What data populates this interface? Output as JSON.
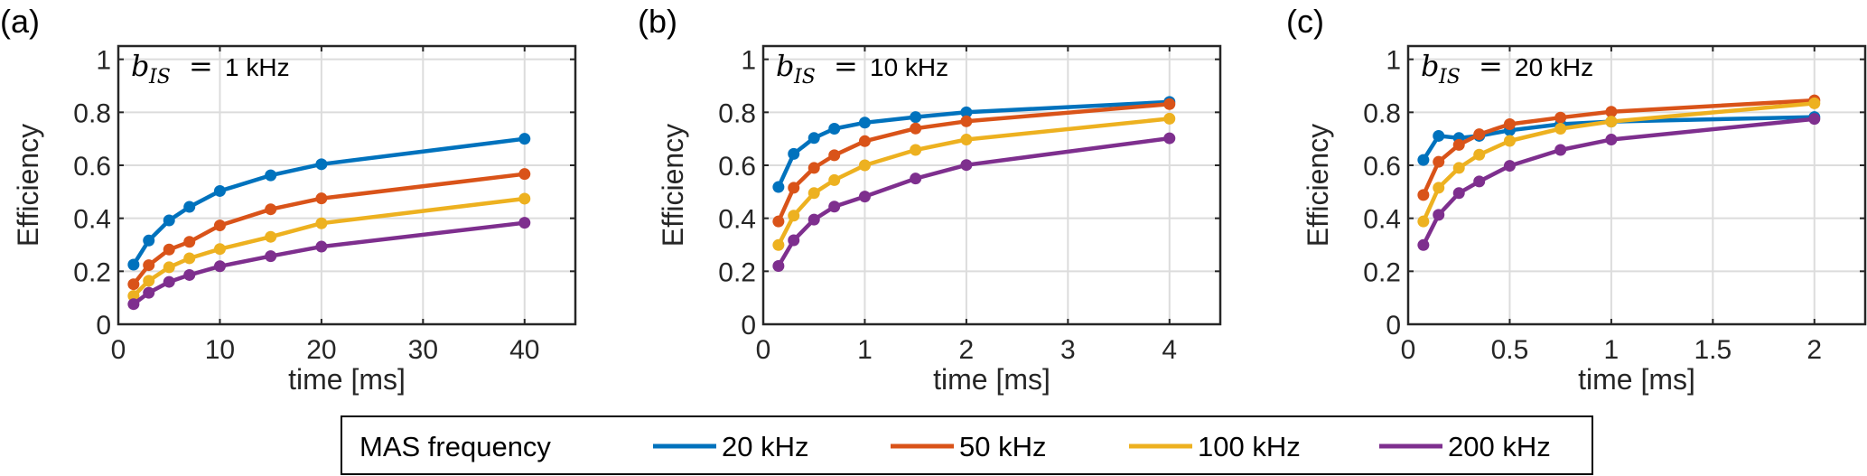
{
  "chart_data": [
    {
      "type": "line",
      "panel_label": "(a)",
      "annotation": {
        "var": "b",
        "sub": "IS",
        "eq": "=",
        "value": "1 kHz"
      },
      "xlabel": "time [ms]",
      "ylabel": "Efficiency",
      "xlim": [
        0,
        45
      ],
      "ylim": [
        0,
        1.05
      ],
      "xticks": [
        0,
        10,
        20,
        30,
        40
      ],
      "xtick_labels": [
        "0",
        "10",
        "20",
        "30",
        "40"
      ],
      "yticks": [
        0,
        0.2,
        0.4,
        0.6,
        0.8,
        1
      ],
      "ytick_labels": [
        "0",
        "0.2",
        "0.4",
        "0.6",
        "0.8",
        "1"
      ],
      "grid": true,
      "x": [
        1.5,
        3,
        5,
        7,
        10,
        15,
        20,
        40
      ],
      "series": [
        {
          "name": "20 kHz",
          "values": [
            0.225,
            0.316,
            0.392,
            0.443,
            0.503,
            0.562,
            0.604,
            0.7
          ]
        },
        {
          "name": "50 kHz",
          "values": [
            0.151,
            0.223,
            0.282,
            0.311,
            0.373,
            0.434,
            0.475,
            0.567
          ]
        },
        {
          "name": "100 kHz",
          "values": [
            0.107,
            0.164,
            0.215,
            0.249,
            0.284,
            0.33,
            0.381,
            0.474
          ]
        },
        {
          "name": "200 kHz",
          "values": [
            0.076,
            0.119,
            0.16,
            0.186,
            0.219,
            0.257,
            0.293,
            0.383
          ]
        }
      ]
    },
    {
      "type": "line",
      "panel_label": "(b)",
      "annotation": {
        "var": "b",
        "sub": "IS",
        "eq": "=",
        "value": "10 kHz"
      },
      "xlabel": "time [ms]",
      "ylabel": "Efficiency",
      "xlim": [
        0,
        4.5
      ],
      "ylim": [
        0,
        1.05
      ],
      "xticks": [
        0,
        1,
        2,
        3,
        4
      ],
      "xtick_labels": [
        "0",
        "1",
        "2",
        "3",
        "4"
      ],
      "yticks": [
        0,
        0.2,
        0.4,
        0.6,
        0.8,
        1
      ],
      "ytick_labels": [
        "0",
        "0.2",
        "0.4",
        "0.6",
        "0.8",
        "1"
      ],
      "grid": true,
      "x": [
        0.15,
        0.3,
        0.5,
        0.7,
        1,
        1.5,
        2,
        4
      ],
      "series": [
        {
          "name": "20 kHz",
          "values": [
            0.518,
            0.643,
            0.703,
            0.738,
            0.761,
            0.782,
            0.8,
            0.839
          ]
        },
        {
          "name": "50 kHz",
          "values": [
            0.388,
            0.515,
            0.59,
            0.638,
            0.691,
            0.739,
            0.766,
            0.831
          ]
        },
        {
          "name": "100 kHz",
          "values": [
            0.299,
            0.41,
            0.495,
            0.544,
            0.6,
            0.658,
            0.697,
            0.776
          ]
        },
        {
          "name": "200 kHz",
          "values": [
            0.22,
            0.317,
            0.395,
            0.444,
            0.482,
            0.55,
            0.601,
            0.702
          ]
        }
      ]
    },
    {
      "type": "line",
      "panel_label": "(c)",
      "annotation": {
        "var": "b",
        "sub": "IS",
        "eq": "=",
        "value": "20 kHz"
      },
      "xlabel": "time [ms]",
      "ylabel": "Efficiency",
      "xlim": [
        0,
        2.25
      ],
      "ylim": [
        0,
        1.05
      ],
      "xticks": [
        0,
        0.5,
        1,
        1.5,
        2
      ],
      "xtick_labels": [
        "0",
        "0.5",
        "1",
        "1.5",
        "2"
      ],
      "yticks": [
        0,
        0.2,
        0.4,
        0.6,
        0.8,
        1
      ],
      "ytick_labels": [
        "0",
        "0.2",
        "0.4",
        "0.6",
        "0.8",
        "1"
      ],
      "grid": true,
      "x": [
        0.075,
        0.15,
        0.25,
        0.35,
        0.5,
        0.75,
        1,
        2
      ],
      "series": [
        {
          "name": "20 kHz",
          "values": [
            0.62,
            0.711,
            0.703,
            0.711,
            0.732,
            0.755,
            0.765,
            0.782
          ]
        },
        {
          "name": "50 kHz",
          "values": [
            0.488,
            0.613,
            0.677,
            0.717,
            0.755,
            0.78,
            0.802,
            0.845
          ]
        },
        {
          "name": "100 kHz",
          "values": [
            0.388,
            0.515,
            0.59,
            0.64,
            0.692,
            0.738,
            0.765,
            0.834
          ]
        },
        {
          "name": "200 kHz",
          "values": [
            0.299,
            0.413,
            0.495,
            0.539,
            0.598,
            0.658,
            0.697,
            0.775
          ]
        }
      ]
    }
  ],
  "legend": {
    "title": "MAS frequency",
    "placement": "bottom-center",
    "entries": [
      {
        "label": "20 kHz",
        "color": "#0072BD"
      },
      {
        "label": "50 kHz",
        "color": "#D95319"
      },
      {
        "label": "100 kHz",
        "color": "#EDB120"
      },
      {
        "label": "200 kHz",
        "color": "#7E2F8E"
      }
    ]
  },
  "colors": {
    "axis": "#262626",
    "grid": "#DCDCDC",
    "series": [
      "#0072BD",
      "#D95319",
      "#EDB120",
      "#7E2F8E"
    ]
  }
}
